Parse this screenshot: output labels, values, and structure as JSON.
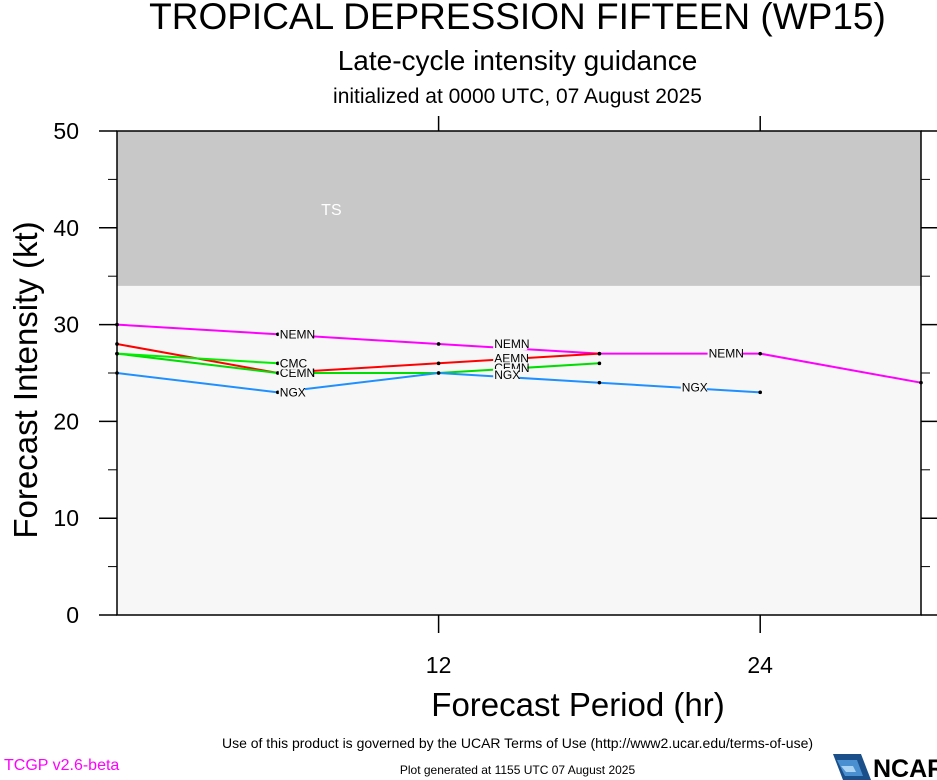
{
  "header": {
    "title": "TROPICAL DEPRESSION FIFTEEN (WP15)",
    "subtitle": "Late-cycle intensity guidance",
    "initialized": "initialized at 0000 UTC, 07 August 2025"
  },
  "footer": {
    "terms": "Use of this product is governed by the UCAR Terms of Use (http://www2.ucar.edu/terms-of-use)",
    "version": "TCGP v2.6-beta",
    "generated": "Plot generated at 1155 UTC   07 August 2025",
    "logo_text": "NCAR"
  },
  "chart_data": {
    "type": "line",
    "xlabel": "Forecast Period (hr)",
    "ylabel": "Forecast Intensity (kt)",
    "xlim": [
      0,
      30
    ],
    "ylim": [
      0,
      50
    ],
    "xticks": [
      12,
      24
    ],
    "yticks": [
      0,
      10,
      20,
      30,
      40,
      50
    ],
    "bands": [
      {
        "label": "TS",
        "from": 34,
        "to": 50,
        "color": "#c8c8c8"
      }
    ],
    "background_color": "#f7f7f7",
    "series": [
      {
        "name": "NEMN",
        "color": "#ff00ff",
        "points": [
          [
            0,
            30
          ],
          [
            6,
            29
          ],
          [
            12,
            28
          ],
          [
            18,
            27
          ],
          [
            24,
            27
          ],
          [
            30,
            24
          ]
        ],
        "labels": [
          [
            6,
            29
          ],
          [
            14,
            28
          ],
          [
            22,
            27
          ]
        ]
      },
      {
        "name": "AEMN",
        "color": "#ff0000",
        "points": [
          [
            0,
            28
          ],
          [
            6,
            25
          ],
          [
            12,
            26
          ],
          [
            18,
            27
          ]
        ],
        "labels": [
          [
            6,
            25
          ],
          [
            14,
            26.5
          ]
        ]
      },
      {
        "name": "CEMN",
        "color": "#00dd00",
        "points": [
          [
            0,
            27
          ],
          [
            6,
            25
          ],
          [
            12,
            25
          ],
          [
            18,
            26
          ]
        ],
        "labels": [
          [
            6,
            25
          ],
          [
            14,
            25.5
          ]
        ]
      },
      {
        "name": "CMC",
        "color": "#00ee00",
        "points": [
          [
            0,
            27
          ],
          [
            6,
            26
          ]
        ],
        "labels": [
          [
            6,
            26
          ]
        ]
      },
      {
        "name": "NGX",
        "color": "#1e90ff",
        "points": [
          [
            0,
            25
          ],
          [
            6,
            23
          ],
          [
            12,
            25
          ],
          [
            18,
            24
          ],
          [
            24,
            23
          ]
        ],
        "labels": [
          [
            6,
            23
          ],
          [
            14,
            24.8
          ],
          [
            21,
            23.5
          ]
        ]
      }
    ]
  }
}
